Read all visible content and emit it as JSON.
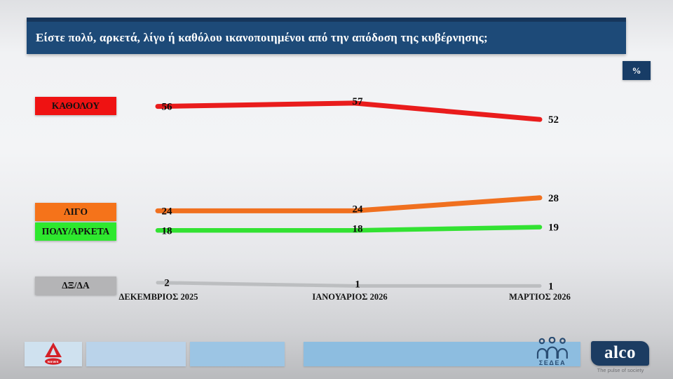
{
  "title": "Είστε πολύ, αρκετά, λίγο ή καθόλου ικανοποιημένοι από την απόδοση της κυβέρνησης;",
  "unit_badge": "%",
  "chart_data": {
    "type": "line",
    "categories": [
      "ΔΕΚΕΜΒΡΙΟΣ 2025",
      "ΙΑΝΟΥΑΡΙΟΣ 2026",
      "ΜΑΡΤΙΟΣ 2026"
    ],
    "series": [
      {
        "id": "katholou",
        "name": "ΚΑΘΟΛΟΥ",
        "color": "#e91c1c",
        "chip_color": "#ef1212",
        "values": [
          56,
          57,
          52
        ]
      },
      {
        "id": "ligo",
        "name": "ΛΙΓΟ",
        "color": "#f0701f",
        "chip_color": "#f5731a",
        "values": [
          24,
          24,
          28
        ]
      },
      {
        "id": "poly-arketa",
        "name": "ΠΟΛΥ/ΑΡΚΕΤΑ",
        "color": "#32e232",
        "chip_color": "#2ee82e",
        "values": [
          18,
          18,
          19
        ]
      },
      {
        "id": "dx-da",
        "name": "ΔΞ/ΔΑ",
        "color": "#bcbec0",
        "chip_color": "#b4b4b6",
        "values": [
          2,
          1,
          1
        ]
      }
    ],
    "ylabel": "%",
    "ylim": [
      0,
      65
    ],
    "grid": false,
    "legend_position": "left"
  },
  "footer": {
    "alpha_news_label": "NEWS",
    "sedea_label": "ΣΕΔΕΑ",
    "alco_label": "alco",
    "alco_tagline": "The pulse of society"
  }
}
